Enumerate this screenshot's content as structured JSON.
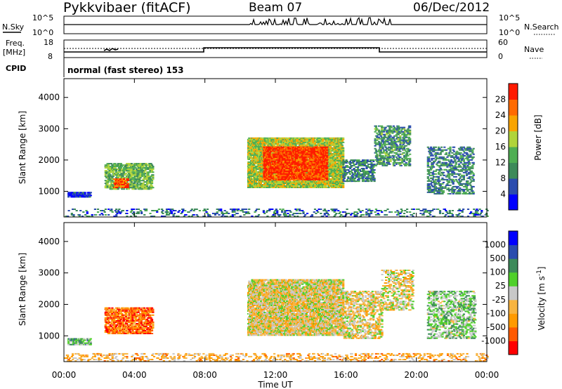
{
  "header": {
    "radar": "Pykkvibaer (fitACF)",
    "beam": "Beam 07",
    "date": "06/Dec/2012"
  },
  "strip": {
    "nsky_label": "N.Sky",
    "nsky_ticks": [
      "10^5",
      "10^0"
    ],
    "nsearch_label": "N.Search",
    "nsearch_ticks": [
      "10^5",
      "10^0"
    ],
    "freq_label": "Freq.",
    "freq_unit": "[MHz]",
    "freq_ticks": [
      "18",
      "8"
    ],
    "nave_label": "Nave",
    "nave_ticks": [
      "60",
      "0"
    ],
    "cpid_label": "CPID",
    "cpid_text": "normal (fast stereo) 153"
  },
  "chart_data": [
    {
      "type": "heatmap",
      "panel": "power",
      "xlabel": "Time UT",
      "ylabel": "Slant Range [km]",
      "x_ticks": [
        "00:00",
        "04:00",
        "08:00",
        "12:00",
        "16:00",
        "20:00",
        "00:00"
      ],
      "x_range_hours": [
        0,
        24
      ],
      "y_ticks": [
        1000,
        2000,
        3000,
        4000
      ],
      "ylim": [
        180,
        4600
      ],
      "colorbar": {
        "label": "Power [dB]",
        "ticks": [
          "28",
          "24",
          "20",
          "16",
          "12",
          "8",
          "4"
        ],
        "colors": [
          "#0000ff",
          "#2b4cae",
          "#3d8a5a",
          "#4fae53",
          "#b0d43a",
          "#f8a400",
          "#ff6a00",
          "#ff1a00"
        ]
      },
      "regions": [
        {
          "t0": 0.0,
          "t1": 24.0,
          "r0": 180,
          "r1": 420,
          "level": 0.25,
          "density": 0.2
        },
        {
          "t0": 0.2,
          "t1": 1.5,
          "r0": 800,
          "r1": 950,
          "level": 0.12,
          "density": 0.8
        },
        {
          "t0": 2.3,
          "t1": 5.0,
          "r0": 1050,
          "r1": 1900,
          "level": 0.45,
          "density": 0.65
        },
        {
          "t0": 2.8,
          "t1": 3.6,
          "r0": 1100,
          "r1": 1400,
          "level": 0.85,
          "density": 0.7
        },
        {
          "t0": 10.4,
          "t1": 15.8,
          "r0": 1100,
          "r1": 2700,
          "level": 0.55,
          "density": 0.85
        },
        {
          "t0": 11.3,
          "t1": 14.9,
          "r0": 1350,
          "r1": 2400,
          "level": 0.9,
          "density": 0.85
        },
        {
          "t0": 15.8,
          "t1": 17.6,
          "r0": 1300,
          "r1": 2000,
          "level": 0.3,
          "density": 0.5
        },
        {
          "t0": 17.6,
          "t1": 19.6,
          "r0": 1800,
          "r1": 3100,
          "level": 0.35,
          "density": 0.45
        },
        {
          "t0": 20.6,
          "t1": 23.2,
          "r0": 900,
          "r1": 2400,
          "level": 0.3,
          "density": 0.4
        }
      ]
    },
    {
      "type": "heatmap",
      "panel": "velocity",
      "xlabel": "Time UT",
      "ylabel": "Slant Range [km]",
      "x_ticks": [
        "00:00",
        "04:00",
        "08:00",
        "12:00",
        "16:00",
        "20:00",
        "00:00"
      ],
      "x_range_hours": [
        0,
        24
      ],
      "y_ticks": [
        1000,
        2000,
        3000,
        4000
      ],
      "ylim": [
        180,
        4600
      ],
      "colorbar": {
        "label": "Velocity [m s^-1]",
        "ticks": [
          "1000",
          "500",
          "100",
          "25",
          "-25",
          "-100",
          "-500",
          "-1000"
        ],
        "colors": [
          "#ff0000",
          "#ff5a00",
          "#ff9a00",
          "#f8b440",
          "#c8c8c8",
          "#4fd02a",
          "#3d8a5a",
          "#2b4cae",
          "#0000ff"
        ]
      },
      "regions": [
        {
          "t0": 0.0,
          "t1": 24.0,
          "r0": 180,
          "r1": 450,
          "level": 0.35,
          "density": 0.25
        },
        {
          "t0": 0.2,
          "t1": 1.5,
          "r0": 700,
          "r1": 900,
          "level": 0.62,
          "density": 0.8
        },
        {
          "t0": 2.3,
          "t1": 5.0,
          "r0": 1050,
          "r1": 1900,
          "level": 0.2,
          "density": 0.65
        },
        {
          "t0": 10.4,
          "t1": 15.8,
          "r0": 1000,
          "r1": 2800,
          "level": 0.45,
          "density": 0.8
        },
        {
          "t0": 15.8,
          "t1": 18.0,
          "r0": 900,
          "r1": 2400,
          "level": 0.45,
          "density": 0.45
        },
        {
          "t0": 18.0,
          "t1": 19.8,
          "r0": 1800,
          "r1": 3100,
          "level": 0.45,
          "density": 0.4
        },
        {
          "t0": 20.6,
          "t1": 23.3,
          "r0": 900,
          "r1": 2400,
          "level": 0.6,
          "density": 0.4
        }
      ]
    }
  ]
}
